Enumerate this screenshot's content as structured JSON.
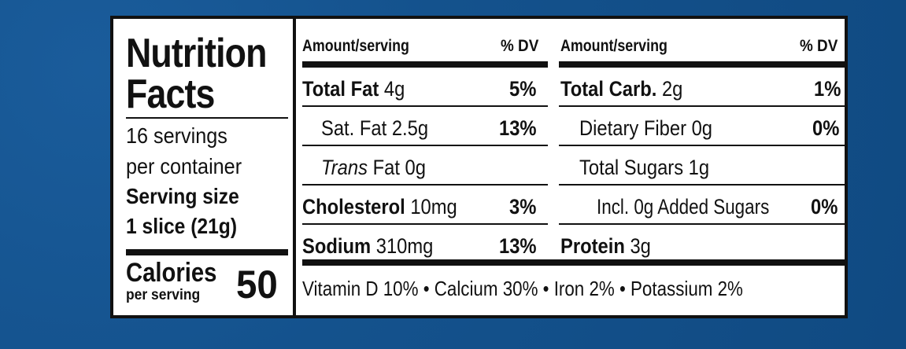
{
  "panel": {
    "title_line1": "Nutrition",
    "title_line2": "Facts",
    "servings_line1": "16 servings",
    "servings_line2": "per container",
    "serving_size_label": "Serving size",
    "serving_size_value": "1 slice (21g)",
    "calories_label": "Calories",
    "calories_sub": "per serving",
    "calories_value": "50"
  },
  "columns": {
    "left_header": "Amount/serving",
    "left_dv_header": "% DV",
    "right_header": "Amount/serving",
    "right_dv_header": "% DV"
  },
  "left_rows": [
    {
      "label": "Total Fat",
      "amount": "4g",
      "dv": "5%"
    },
    {
      "label": "Sat. Fat",
      "amount": "2.5g",
      "dv": "13%"
    },
    {
      "label": "Trans",
      "amount": "Fat 0g",
      "dv": ""
    },
    {
      "label": "Cholesterol",
      "amount": "10mg",
      "dv": "3%"
    },
    {
      "label": "Sodium",
      "amount": "310mg",
      "dv": "13%"
    }
  ],
  "right_rows": [
    {
      "label": "Total Carb.",
      "amount": "2g",
      "dv": "1%"
    },
    {
      "label": "Dietary Fiber 0g",
      "dv": "0%"
    },
    {
      "label": "Total Sugars 1g",
      "dv": ""
    },
    {
      "label": "Incl. 0g Added Sugars",
      "dv": "0%"
    },
    {
      "label": "Protein",
      "amount": "3g",
      "dv": ""
    }
  ],
  "footer": "Vitamin D 10% • Calcium 30%  • Iron 2% • Potassium 2%",
  "colors": {
    "background": "#14528d",
    "label": "#ffffff",
    "ink": "#111111"
  }
}
